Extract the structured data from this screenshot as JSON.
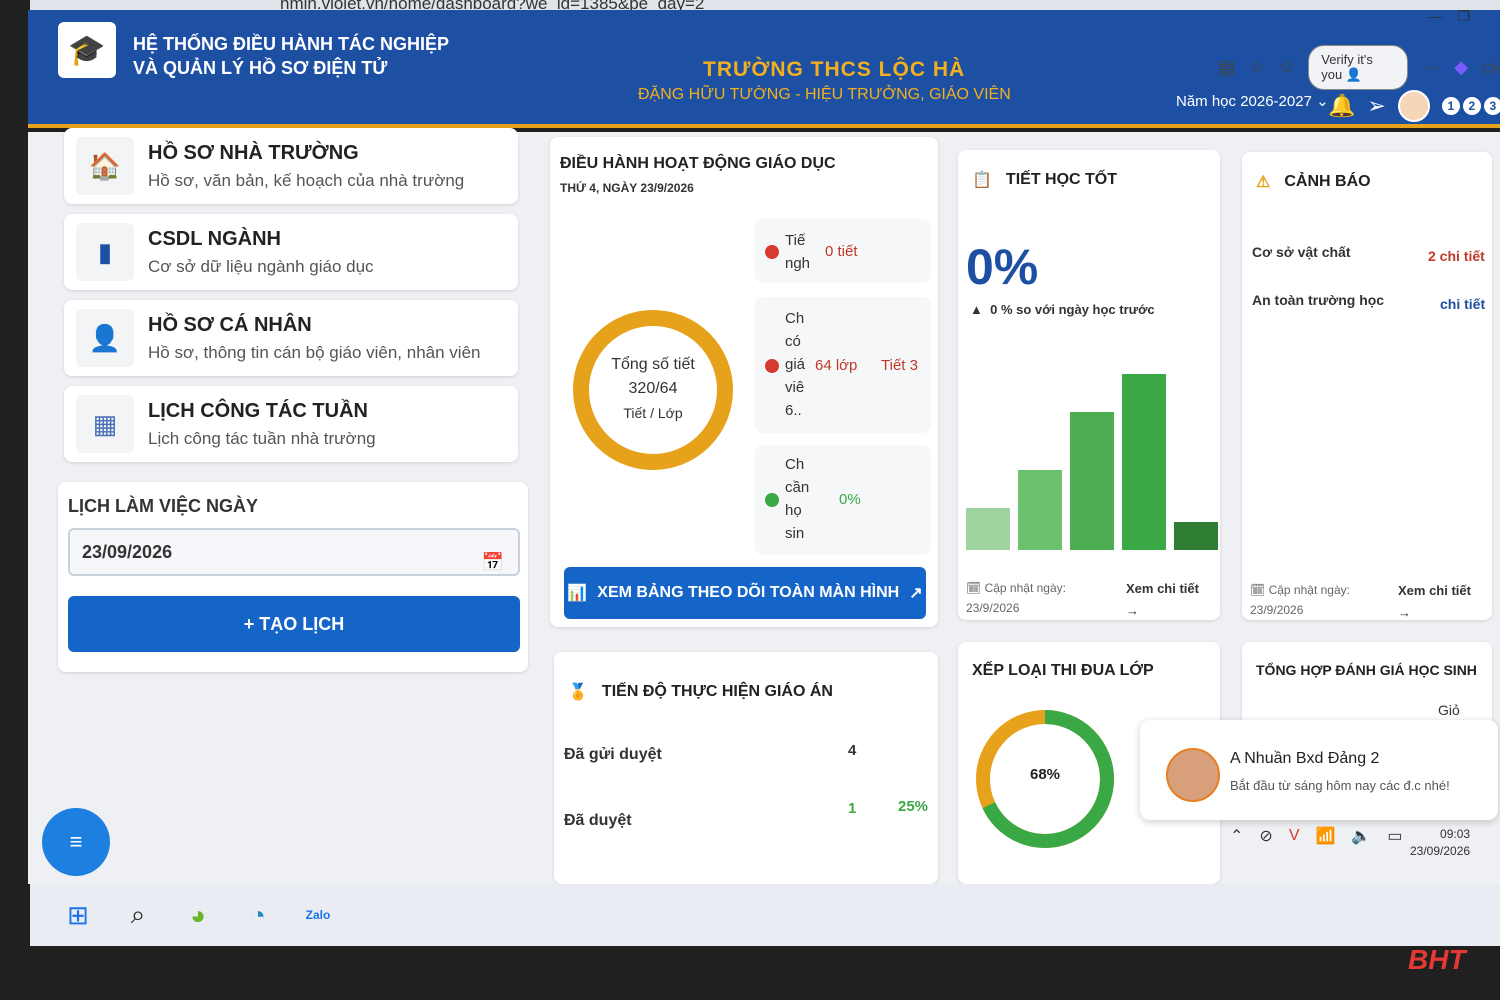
{
  "browser": {
    "url": "nmin.violet.vn/home/dashboard?we_id=1385&pe_day=2",
    "verify_label": "Verify it's you",
    "edge_tab_label": "Ch"
  },
  "header": {
    "system_title_line1": "HỆ THỐNG ĐIỀU HÀNH TÁC NGHIỆP",
    "system_title_line2": "VÀ QUẢN LÝ HỒ SƠ ĐIỆN TỬ",
    "school_name": "TRƯỜNG THCS LỘC HÀ",
    "principal": "ĐẶNG HỮU TƯỜNG - HIỆU TRƯỞNG, GIÁO VIÊN",
    "school_year": "Năm học 2026-2027",
    "badges": [
      "1",
      "2",
      "3"
    ]
  },
  "sidebar": {
    "items": [
      {
        "title": "HỒ SƠ NHÀ TRƯỜNG",
        "subtitle": "Hồ sơ, văn bản, kế hoạch của nhà trường",
        "icon": "home-icon"
      },
      {
        "title": "CSDL NGÀNH",
        "subtitle": "Cơ sở dữ liệu ngành giáo dục",
        "icon": "database-icon"
      },
      {
        "title": "HỒ SƠ CÁ NHÂN",
        "subtitle": "Hồ sơ, thông tin cán bộ giáo viên, nhân viên",
        "icon": "user-icon"
      },
      {
        "title": "LỊCH CÔNG TÁC TUẦN",
        "subtitle": "Lịch công tác tuần nhà trường",
        "icon": "calendar-grid-icon"
      }
    ],
    "daily_schedule": {
      "title": "LỊCH LÀM VIỆC NGÀY",
      "date_value": "23/09/2026",
      "create_button": "+ TẠO LỊCH"
    }
  },
  "operations": {
    "title": "ĐIỀU HÀNH HOẠT ĐỘNG GIÁO DỤC",
    "date": "THỨ 4, NGÀY 23/9/2026",
    "donut": {
      "line1": "Tổng số tiết",
      "line2": "320/64",
      "line3": "Tiết / Lớp"
    },
    "stats": [
      {
        "label_lines": [
          "Tiế",
          "ngh"
        ],
        "value": "0 tiết",
        "extra": ""
      },
      {
        "label_lines": [
          "Ch",
          "có",
          "giá",
          "viê",
          "6.."
        ],
        "value": "64 lớp",
        "extra": "Tiết 3"
      },
      {
        "label_lines": [
          "Ch",
          "cần",
          "họ",
          "sin"
        ],
        "value": "0%",
        "extra": ""
      }
    ],
    "fullscreen_button": "XEM BẢNG THEO DÕI TOÀN MÀN HÌNH"
  },
  "good_lessons": {
    "title": "TIẾT HỌC TỐT",
    "percent": "0%",
    "compare": "0 % so với ngày học trước",
    "updated_label": "Cập nhật ngày:",
    "updated_date": "23/9/2026",
    "detail_link": "Xem chi tiết",
    "arrow": "→"
  },
  "warnings": {
    "title": "CẢNH BÁO",
    "rows": [
      {
        "label": "Cơ sở vật chất",
        "value": "2 chi tiết"
      },
      {
        "label": "An toàn trường học",
        "value": "chi tiết"
      }
    ],
    "updated_label": "Cập nhật ngày:",
    "updated_date": "23/9/2026",
    "detail_link": "Xem chi tiết",
    "arrow": "→"
  },
  "lesson_plan": {
    "title": "TIẾN ĐỘ THỰC HIỆN GIÁO ÁN",
    "rows": [
      {
        "label": "Đã gửi duyệt",
        "count": "4",
        "pct": ""
      },
      {
        "label": "Đã duyệt",
        "count": "1",
        "pct": "25%"
      }
    ]
  },
  "ranking": {
    "title": "XẾP LOẠI THI ĐUA LỚP",
    "percent": "68%"
  },
  "evaluation": {
    "title": "TỔNG HỢP ĐÁNH GIÁ HỌC SINH",
    "sub": "Giỏ"
  },
  "notification": {
    "name": "A Nhuần Bxd Đảng 2",
    "message": "Bắt đầu từ sáng hôm nay các đ.c nhé!"
  },
  "tray": {
    "time": "09:03",
    "date": "23/09/2026"
  },
  "watermark": "BHT",
  "colors": {
    "header_blue": "#1d4fa3",
    "accent_orange": "#e6a21a",
    "button_blue": "#1565c9",
    "green": "#3aa845",
    "red": "#d63b32"
  }
}
